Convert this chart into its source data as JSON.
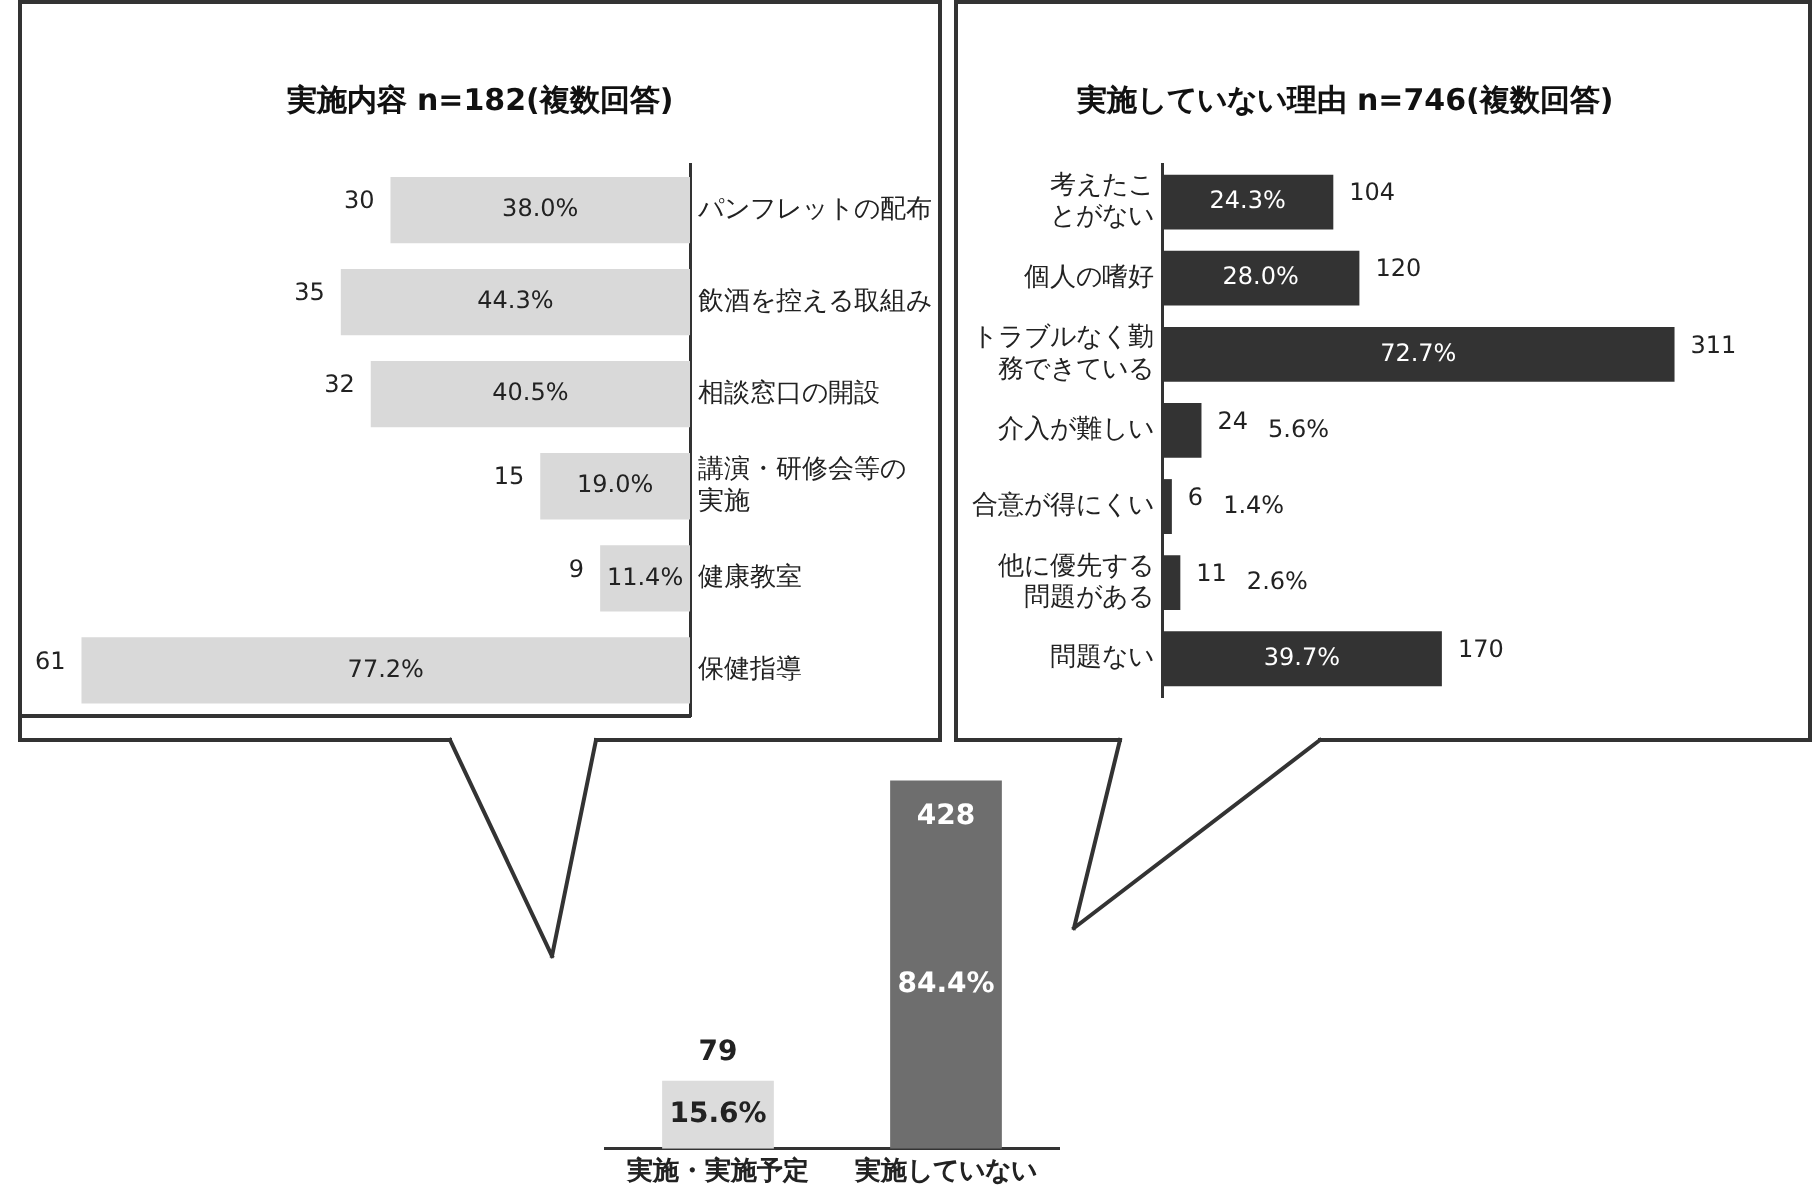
{
  "chart_data": [
    {
      "type": "bar",
      "orientation": "horizontal",
      "xlim": [
        85,
        0
      ],
      "title": "実施内容 n=182(複数回答)",
      "categories": [
        "パンフレットの配布",
        "飲酒を控える取組み",
        "相談窓口の開設",
        "講演・研修会等の実施",
        "健康教室",
        "保健指導"
      ],
      "values": [
        38.0,
        44.3,
        40.5,
        19.0,
        11.4,
        77.2
      ],
      "color": "#d9d9d9",
      "value_labels": [
        "38.0%",
        "44.3%",
        "40.5%",
        "19.0%",
        "11.4%",
        "77.2%"
      ],
      "annotations": [
        {
          "text": "30",
          "x": 38.0,
          "y": "パンフレットの配布"
        },
        {
          "text": "35",
          "x": 44.3,
          "y": "飲酒を控える取組み"
        },
        {
          "text": "32",
          "x": 40.5,
          "y": "相談窓口の開設"
        },
        {
          "text": "15",
          "x": 19.0,
          "y": "講演・研修会等の実施"
        },
        {
          "text": "9",
          "x": 11.4,
          "y": "健康教室"
        },
        {
          "text": "61",
          "x": 77.2,
          "y": "保健指導"
        }
      ]
    },
    {
      "type": "bar",
      "orientation": "horizontal",
      "title": "実施していない理由 n=746(複数回答)",
      "categories": [
        "考えたことがない",
        "個人の嗜好",
        "トラブルなく勤務できている",
        "介入が難しい",
        "合意が得にくい",
        "他に優先する問題がある",
        "問題ない"
      ],
      "values": [
        24.3,
        28.0,
        72.7,
        5.6,
        1.4,
        2.6,
        39.7
      ],
      "color": "#333333",
      "value_labels": [
        "24.3%",
        "28.0%",
        "72.7%",
        "5.6%",
        "1.4%",
        "2.6%",
        "39.7%"
      ],
      "annotations": [
        {
          "text": "104",
          "x": 24.3,
          "y": "考えたことがない"
        },
        {
          "text": "120",
          "x": 28.0,
          "y": "個人の嗜好"
        },
        {
          "text": "311",
          "x": 72.7,
          "y": "トラブルなく勤務できている"
        },
        {
          "text": "24",
          "x": 5.6,
          "y": "介入が難しい"
        },
        {
          "text": "6",
          "x": 1.4,
          "y": "合意が得にくい"
        },
        {
          "text": "11",
          "x": 2.6,
          "y": "他に優先する問題がある"
        },
        {
          "text": "170",
          "x": 39.7,
          "y": "問題ない"
        }
      ]
    },
    {
      "type": "bar",
      "categories": [
        "実施・実施予定",
        "実施していない"
      ],
      "values": [
        15.6,
        84.4
      ],
      "colors": [
        "#dcdcdc",
        "#6e6e6e"
      ],
      "value_labels": [
        "15.6%",
        "84.4%"
      ],
      "annotations": [
        {
          "text": "79",
          "x": "実施・実施予定",
          "y": 15.6
        },
        {
          "text": "428",
          "x": "実施していない",
          "y": 84.4
        }
      ]
    }
  ]
}
